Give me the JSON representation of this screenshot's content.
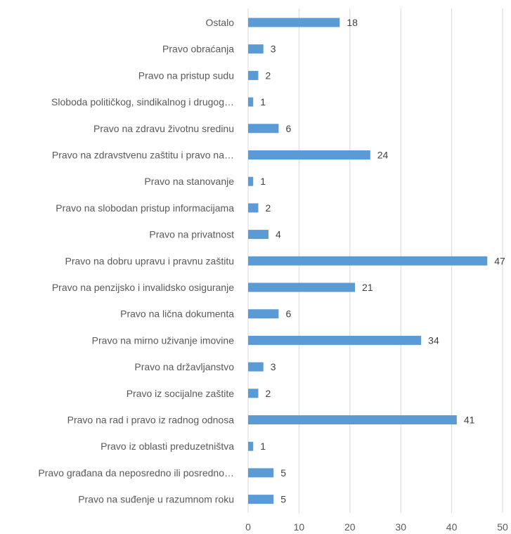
{
  "chart_data": {
    "type": "bar",
    "orientation": "horizontal",
    "title": "",
    "xlabel": "",
    "ylabel": "",
    "xlim": [
      0,
      50
    ],
    "xticks": [
      0,
      10,
      20,
      30,
      40,
      50
    ],
    "grid": true,
    "bar_color": "#5b9bd5",
    "categories": [
      "Ostalo",
      "Pravo obraćanja",
      "Pravo na pristup sudu",
      "Sloboda političkog, sindikalnog i drugog…",
      "Pravo na zdravu životnu sredinu",
      "Pravo na zdravstvenu zaštitu i pravo na…",
      "Pravo na stanovanje",
      "Pravo na slobodan pristup informacijama",
      "Pravo na privatnost",
      "Pravo na dobru upravu i pravnu zaštitu",
      "Pravo na penzijsko i invalidsko osiguranje",
      "Pravo na lična dokumenta",
      "Pravo na mirno uživanje imovine",
      "Pravo na državljanstvo",
      "Pravo iz socijalne zaštite",
      "Pravo na rad i pravo iz radnog odnosa",
      "Pravo iz oblasti preduzetništva",
      "Pravo građana da neposredno ili posredno…",
      "Pravo na suđenje u razumnom roku"
    ],
    "values": [
      18,
      3,
      2,
      1,
      6,
      24,
      1,
      2,
      4,
      47,
      21,
      6,
      34,
      3,
      2,
      41,
      1,
      5,
      5
    ]
  }
}
